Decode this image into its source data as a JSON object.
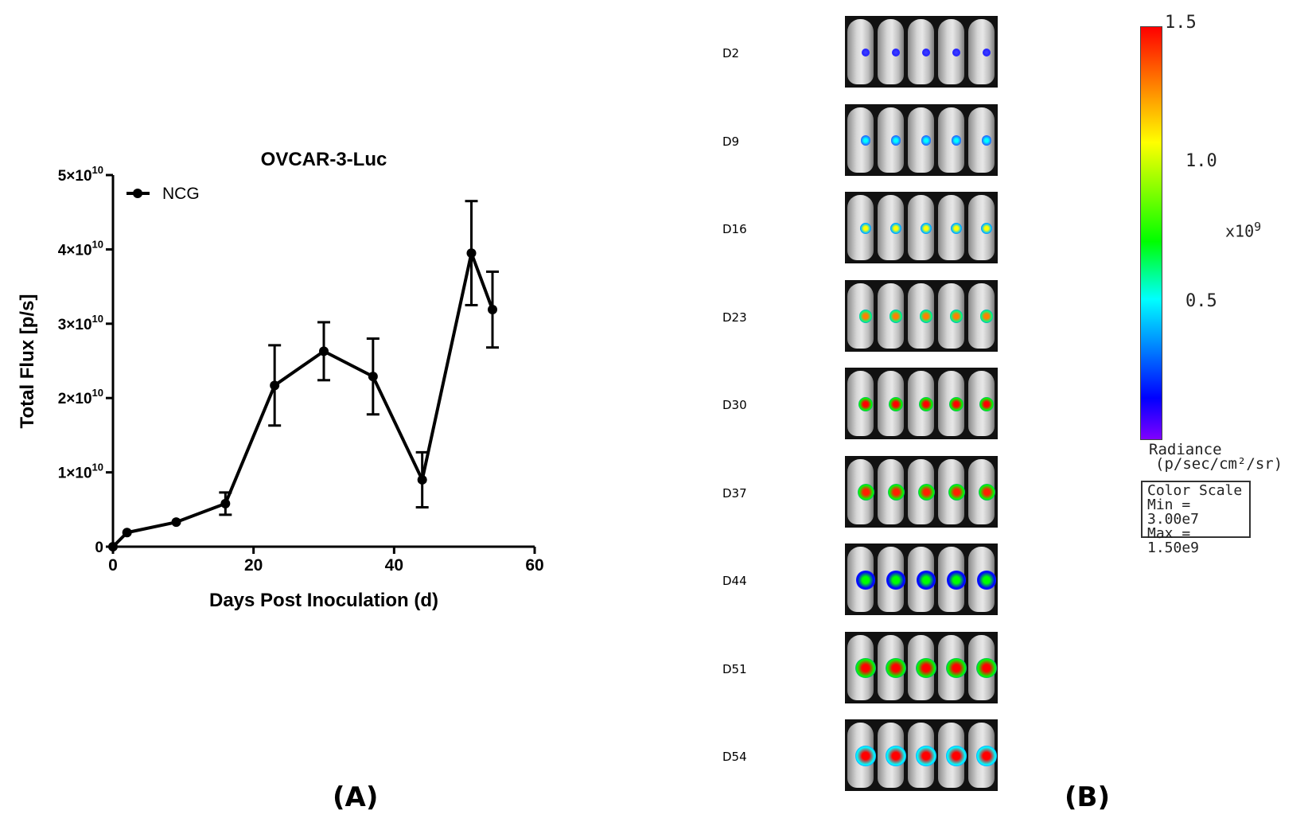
{
  "chart_data": {
    "type": "line",
    "title": "OVCAR-3-Luc",
    "xlabel": "Days Post Inoculation (d)",
    "ylabel": "Total Flux [p/s]",
    "xlim": [
      0,
      60
    ],
    "ylim": [
      0,
      50000000000
    ],
    "x_ticks": [
      "0",
      "20",
      "40",
      "60"
    ],
    "y_ticks": [
      {
        "value": 0,
        "base": "0",
        "exp": ""
      },
      {
        "value": 10000000000,
        "base": "1×10",
        "exp": "10"
      },
      {
        "value": 20000000000,
        "base": "2×10",
        "exp": "10"
      },
      {
        "value": 30000000000,
        "base": "3×10",
        "exp": "10"
      },
      {
        "value": 40000000000,
        "base": "4×10",
        "exp": "10"
      },
      {
        "value": 50000000000,
        "base": "5×10",
        "exp": "10"
      }
    ],
    "legend": {
      "position": "top-left"
    },
    "series": [
      {
        "name": "NCG",
        "color": "#000000",
        "x": [
          0,
          2,
          9,
          16,
          23,
          30,
          37,
          44,
          51,
          54
        ],
        "y": [
          0,
          1900000000,
          3300000000,
          5800000000,
          21700000000,
          26300000000,
          22900000000,
          9000000000,
          39500000000,
          31900000000
        ],
        "error": [
          0,
          0,
          0,
          1500000000,
          5400000000,
          3900000000,
          5100000000,
          3700000000,
          7000000000,
          5100000000
        ]
      }
    ]
  },
  "labels": {
    "panel_a": "(A)",
    "panel_b": "(B)"
  },
  "imaging": {
    "days": [
      "D2",
      "D9",
      "D16",
      "D23",
      "D30",
      "D37",
      "D44",
      "D51",
      "D54"
    ],
    "scale_max": "1.5",
    "scale_mid": "1.0",
    "scale_low": "0.5",
    "multiplier": "x10",
    "multiplier_exp": "9",
    "radiance_line1": "Radiance",
    "radiance_line2": "(p/sec/cm²/sr)",
    "color_scale_title": "Color Scale",
    "color_scale_min": "Min = 3.00e7",
    "color_scale_max": "Max = 1.50e9"
  }
}
